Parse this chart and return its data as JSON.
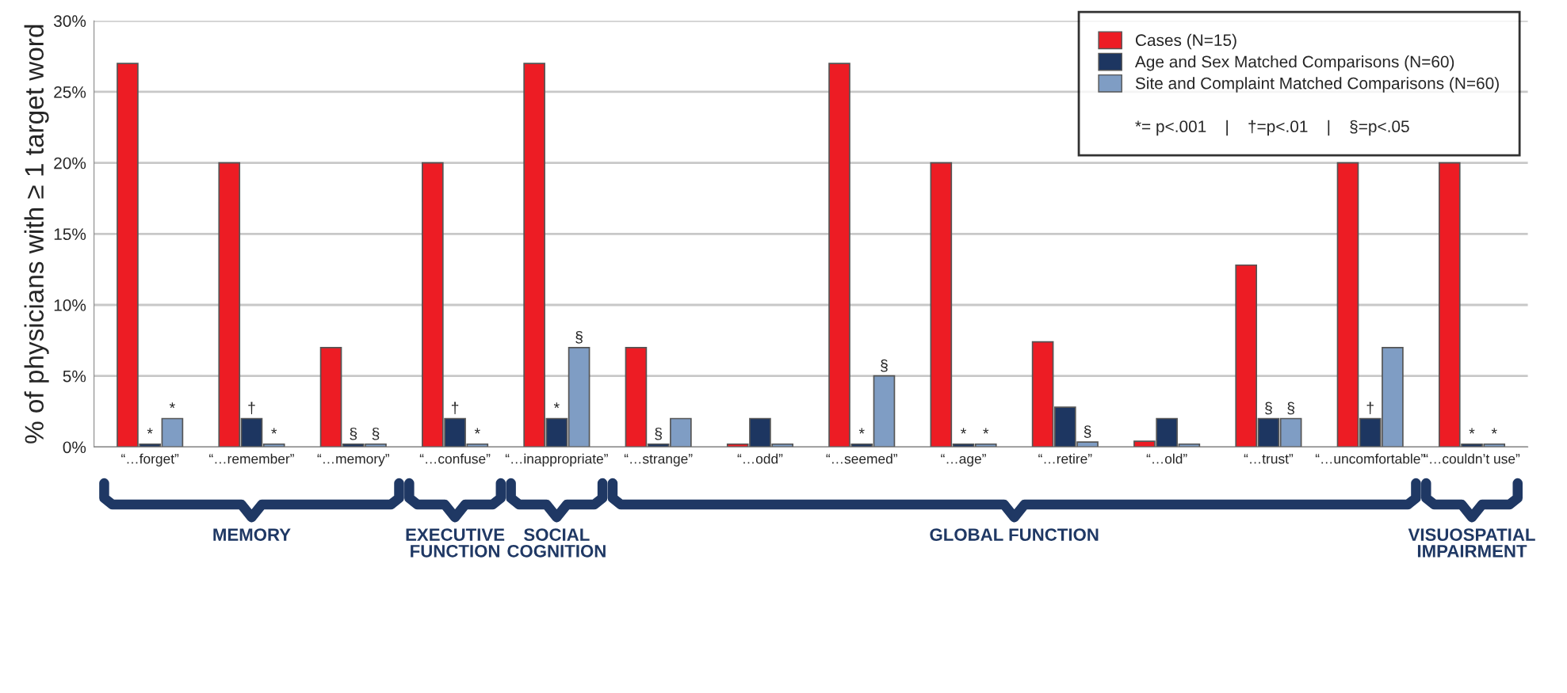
{
  "chart_data": {
    "type": "bar",
    "ylabel": "% of physicians with ≥ 1 target word",
    "categories": [
      "“…forget”",
      "“…remember”",
      "“…memory”",
      "“…confuse”",
      "“…inappropriate”",
      "“…strange”",
      "“…odd”",
      "“…seemed”",
      "“…age”",
      "“…retire”",
      "“…old”",
      "“…trust”",
      "“…uncomfortable”",
      "“…couldn’t use”"
    ],
    "series": [
      {
        "name": "Cases (N=15)",
        "color": "#ed1c24",
        "values": [
          27,
          20,
          7,
          20,
          27,
          7,
          0.2,
          27,
          20,
          7.4,
          0.4,
          12.8,
          20,
          20
        ]
      },
      {
        "name": "Age and Sex Matched Comparisons (N=60)",
        "color": "#1d3661",
        "values": [
          0.2,
          2,
          0.2,
          2,
          2,
          0.2,
          2,
          0.2,
          0.2,
          2.8,
          2,
          2,
          2,
          0.2
        ],
        "value_labels": [
          "*",
          "†",
          "§",
          "†",
          "*",
          "§",
          null,
          "*",
          "*",
          null,
          null,
          "§",
          "†",
          "*"
        ]
      },
      {
        "name": "Site and Complaint Matched Comparisons (N=60)",
        "color": "#7f9dc4",
        "values": [
          2,
          0.2,
          0.2,
          0.2,
          7,
          2,
          0.2,
          5,
          0.2,
          0.35,
          0.2,
          2,
          7,
          0.2
        ],
        "value_labels": [
          "*",
          "*",
          "§",
          "*",
          "§",
          null,
          null,
          "§",
          "*",
          "§",
          null,
          "§",
          null,
          "*"
        ]
      }
    ],
    "ylim": [
      0,
      30
    ],
    "yticks": [
      {
        "value": 0,
        "label": "0%"
      },
      {
        "value": 5,
        "label": "5%"
      },
      {
        "value": 10,
        "label": "10%"
      },
      {
        "value": 15,
        "label": "15%"
      },
      {
        "value": 20,
        "label": "20%"
      },
      {
        "value": 25,
        "label": "25%"
      },
      {
        "value": 30,
        "label": "30%"
      }
    ],
    "grid": "y",
    "legend": "top right",
    "annotations": [
      "*= p<.001    |    †=p<.01    |    §=p<.05",
      "MEMORY",
      "EXECUTIVE\nFUNCTION",
      "SOCIAL\nCOGNITION",
      "GLOBAL FUNCTION",
      "VISUOSPATIAL\nIMPAIRMENT"
    ]
  }
}
